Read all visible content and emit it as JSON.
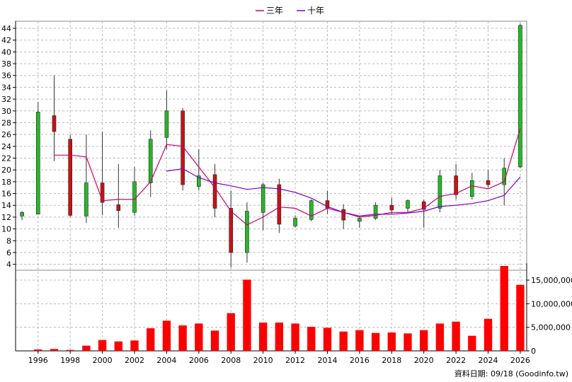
{
  "chart_data": {
    "type": "candlestick",
    "legend": [
      {
        "label": "三年",
        "color": "#cc0066"
      },
      {
        "label": "十年",
        "color": "#7700cc"
      }
    ],
    "price_axis": {
      "ticks": [
        4,
        6,
        8,
        10,
        12,
        14,
        16,
        18,
        20,
        22,
        24,
        26,
        28,
        30,
        32,
        34,
        36,
        38,
        40,
        42,
        44
      ],
      "range": [
        3,
        45.2
      ]
    },
    "volume_axis": {
      "ticks": [
        0,
        5000000,
        10000000,
        15000000
      ],
      "tick_labels": [
        "0",
        "5,000,000",
        "10,000,000",
        "15,000,000"
      ],
      "range": [
        0,
        18600000
      ]
    },
    "x_axis": {
      "range": [
        1994.6,
        2026.4
      ],
      "ticks": [
        1996,
        1998,
        2000,
        2002,
        2004,
        2006,
        2008,
        2010,
        2012,
        2014,
        2016,
        2018,
        2020,
        2022,
        2024,
        2026
      ]
    },
    "candles": [
      {
        "year": 1995,
        "open": 12.2,
        "close": 12.8,
        "high": 13.0,
        "low": 11.5
      },
      {
        "year": 1996,
        "open": 12.5,
        "close": 29.8,
        "high": 31.5,
        "low": 12.5
      },
      {
        "year": 1997,
        "open": 29.2,
        "close": 26.5,
        "high": 36.0,
        "low": 21.5
      },
      {
        "year": 1998,
        "open": 25.2,
        "close": 12.3,
        "high": 26.0,
        "low": 12.0
      },
      {
        "year": 1999,
        "open": 12.2,
        "close": 17.8,
        "high": 26.0,
        "low": 11.0
      },
      {
        "year": 2000,
        "open": 17.8,
        "close": 14.5,
        "high": 26.5,
        "low": 12.3
      },
      {
        "year": 2001,
        "open": 14.1,
        "close": 13.1,
        "high": 21.0,
        "low": 10.2
      },
      {
        "year": 2002,
        "open": 12.8,
        "close": 18.0,
        "high": 20.5,
        "low": 12.2
      },
      {
        "year": 2003,
        "open": 17.8,
        "close": 25.2,
        "high": 26.7,
        "low": 15.4
      },
      {
        "year": 2004,
        "open": 25.5,
        "close": 30.0,
        "high": 33.5,
        "low": 23.5
      },
      {
        "year": 2005,
        "open": 30.0,
        "close": 17.5,
        "high": 30.5,
        "low": 16.5
      },
      {
        "year": 2006,
        "open": 17.2,
        "close": 19.0,
        "high": 23.5,
        "low": 16.5
      },
      {
        "year": 2007,
        "open": 19.2,
        "close": 13.5,
        "high": 21.0,
        "low": 12.0
      },
      {
        "year": 2008,
        "open": 13.5,
        "close": 6.0,
        "high": 16.5,
        "low": 3.5
      },
      {
        "year": 2009,
        "open": 6.0,
        "close": 13.0,
        "high": 14.5,
        "low": 4.3
      },
      {
        "year": 2010,
        "open": 12.8,
        "close": 17.5,
        "high": 17.8,
        "low": 9.8
      },
      {
        "year": 2011,
        "open": 17.5,
        "close": 10.8,
        "high": 18.5,
        "low": 9.3
      },
      {
        "year": 2012,
        "open": 10.5,
        "close": 11.8,
        "high": 12.3,
        "low": 10.2
      },
      {
        "year": 2013,
        "open": 11.6,
        "close": 14.8,
        "high": 15.0,
        "low": 11.3
      },
      {
        "year": 2014,
        "open": 14.8,
        "close": 13.5,
        "high": 16.5,
        "low": 12.5
      },
      {
        "year": 2015,
        "open": 13.3,
        "close": 11.5,
        "high": 14.2,
        "low": 10.0
      },
      {
        "year": 2016,
        "open": 11.3,
        "close": 11.8,
        "high": 12.2,
        "low": 10.2
      },
      {
        "year": 2017,
        "open": 11.8,
        "close": 14.0,
        "high": 14.5,
        "low": 11.5
      },
      {
        "year": 2018,
        "open": 14.0,
        "close": 13.2,
        "high": 15.3,
        "low": 12.5
      },
      {
        "year": 2019,
        "open": 13.5,
        "close": 14.8,
        "high": 15.0,
        "low": 12.9
      },
      {
        "year": 2020,
        "open": 14.6,
        "close": 13.3,
        "high": 15.0,
        "low": 10.2
      },
      {
        "year": 2021,
        "open": 13.5,
        "close": 19.0,
        "high": 20.0,
        "low": 12.8
      },
      {
        "year": 2022,
        "open": 19.0,
        "close": 15.8,
        "high": 21.0,
        "low": 15.0
      },
      {
        "year": 2023,
        "open": 15.5,
        "close": 18.2,
        "high": 19.5,
        "low": 15.0
      },
      {
        "year": 2024,
        "open": 18.2,
        "close": 17.5,
        "high": 20.0,
        "low": 17.0
      },
      {
        "year": 2025,
        "open": 17.5,
        "close": 20.3,
        "high": 22.0,
        "low": 14.0
      },
      {
        "year": 2026,
        "open": 20.5,
        "close": 44.5,
        "high": 44.8,
        "low": 20.3
      }
    ],
    "series": [
      {
        "name": "三年",
        "color": "#cc0066",
        "x": [
          1997,
          1998,
          1999,
          2000,
          2001,
          2002,
          2003,
          2004,
          2005,
          2006,
          2007,
          2008,
          2009,
          2010,
          2011,
          2012,
          2013,
          2014,
          2015,
          2016,
          2017,
          2018,
          2019,
          2020,
          2021,
          2022,
          2023,
          2024,
          2025,
          2026
        ],
        "values": [
          22.5,
          22.5,
          22.2,
          14.8,
          15.0,
          15.0,
          18.0,
          24.3,
          24.0,
          20.5,
          17.0,
          13.0,
          10.7,
          12.0,
          13.7,
          13.5,
          12.2,
          13.5,
          12.8,
          12.0,
          12.3,
          12.8,
          12.8,
          13.5,
          15.5,
          16.0,
          17.3,
          16.8,
          18.0,
          27.0
        ]
      },
      {
        "name": "十年",
        "color": "#7700cc",
        "x": [
          2004,
          2005,
          2006,
          2007,
          2008,
          2009,
          2010,
          2011,
          2012,
          2013,
          2014,
          2015,
          2016,
          2017,
          2018,
          2019,
          2020,
          2021,
          2022,
          2023,
          2024,
          2025,
          2026
        ],
        "values": [
          19.8,
          20.2,
          18.7,
          17.8,
          17.3,
          16.7,
          17.0,
          16.8,
          16.2,
          15.2,
          13.8,
          12.8,
          12.2,
          12.5,
          12.5,
          12.7,
          13.0,
          13.8,
          14.0,
          14.3,
          14.8,
          15.7,
          18.8
        ]
      }
    ],
    "volume": {
      "color": "#ff0000",
      "x": [
        1995,
        1996,
        1997,
        1998,
        1999,
        2000,
        2001,
        2002,
        2003,
        2004,
        2005,
        2006,
        2007,
        2008,
        2009,
        2010,
        2011,
        2012,
        2013,
        2014,
        2015,
        2016,
        2017,
        2018,
        2019,
        2020,
        2021,
        2022,
        2023,
        2024,
        2025,
        2026
      ],
      "values": [
        0,
        300000,
        400000,
        200000,
        1100000,
        2300000,
        2000000,
        2200000,
        4800000,
        6400000,
        5400000,
        5800000,
        4300000,
        8000000,
        15100000,
        6000000,
        6000000,
        5800000,
        5100000,
        4900000,
        4100000,
        4400000,
        3800000,
        3900000,
        3700000,
        4400000,
        5800000,
        6200000,
        3200000,
        6800000,
        18000000,
        14000000
      ]
    },
    "up_color": "#22bb22",
    "down_color": "#cc1111",
    "grid": true,
    "legend_position": "top-center"
  },
  "source_label": "資料日期: 09/18  (Goodinfo.tw)"
}
